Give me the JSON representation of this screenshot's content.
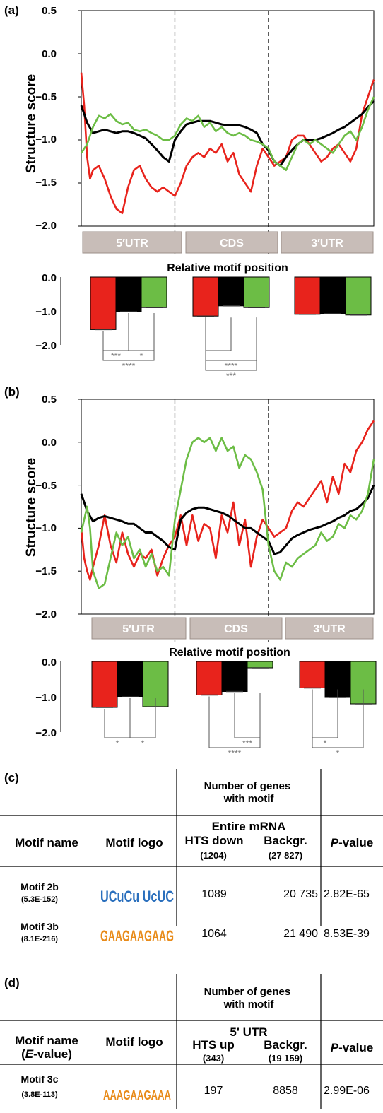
{
  "chart_data": [
    {
      "type": "line",
      "panel_label": "(a)",
      "ylabel": "Structure score",
      "ylim": [
        -2.0,
        0.5
      ],
      "yticks": [
        "0.5",
        "0.0",
        "−0.5",
        "−1.0",
        "−1.5",
        "−2.0"
      ],
      "segments": [
        "5′UTR",
        "CDS",
        "3′UTR"
      ],
      "x_range": [
        0,
        100
      ],
      "dividers": [
        32,
        64
      ],
      "series": [
        {
          "color": "#e8231c",
          "x": [
            0,
            1,
            2,
            3,
            4,
            6,
            8,
            10,
            12,
            14,
            16,
            18,
            20,
            22,
            24,
            26,
            28,
            30,
            32,
            34,
            36,
            38,
            40,
            42,
            44,
            46,
            48,
            50,
            52,
            54,
            56,
            58,
            60,
            62,
            64,
            66,
            68,
            70,
            72,
            74,
            76,
            78,
            80,
            82,
            84,
            86,
            88,
            90,
            92,
            94,
            96,
            98,
            100
          ],
          "values": [
            -0.22,
            -0.6,
            -1.2,
            -1.45,
            -1.35,
            -1.3,
            -1.45,
            -1.65,
            -1.8,
            -1.85,
            -1.55,
            -1.35,
            -1.3,
            -1.45,
            -1.55,
            -1.6,
            -1.55,
            -1.6,
            -1.65,
            -1.5,
            -1.3,
            -1.2,
            -1.15,
            -1.2,
            -1.1,
            -1.15,
            -1.05,
            -1.25,
            -1.15,
            -1.4,
            -1.5,
            -1.6,
            -1.3,
            -1.1,
            -1.2,
            -1.3,
            -1.25,
            -1.2,
            -1.0,
            -0.95,
            -0.95,
            -1.05,
            -1.15,
            -1.25,
            -1.2,
            -1.1,
            -1.05,
            -1.15,
            -1.25,
            -1.1,
            -0.7,
            -0.5,
            -0.3
          ]
        },
        {
          "color": "#000000",
          "x": [
            0,
            2,
            4,
            6,
            8,
            10,
            12,
            14,
            16,
            18,
            20,
            22,
            24,
            26,
            28,
            30,
            32,
            34,
            36,
            38,
            40,
            42,
            44,
            46,
            48,
            50,
            52,
            54,
            56,
            58,
            60,
            62,
            64,
            66,
            68,
            70,
            72,
            74,
            76,
            78,
            80,
            82,
            84,
            86,
            88,
            90,
            92,
            94,
            96,
            98,
            100
          ],
          "values": [
            -0.6,
            -0.8,
            -0.92,
            -0.9,
            -0.88,
            -0.9,
            -0.92,
            -0.9,
            -0.9,
            -0.92,
            -0.95,
            -0.98,
            -1.05,
            -1.12,
            -1.2,
            -1.25,
            -1.0,
            -0.9,
            -0.82,
            -0.8,
            -0.78,
            -0.78,
            -0.78,
            -0.8,
            -0.82,
            -0.83,
            -0.83,
            -0.83,
            -0.85,
            -0.88,
            -0.92,
            -1.05,
            -1.12,
            -1.25,
            -1.3,
            -1.2,
            -1.12,
            -1.05,
            -1.0,
            -1.0,
            -1.0,
            -0.98,
            -0.95,
            -0.92,
            -0.88,
            -0.85,
            -0.8,
            -0.75,
            -0.7,
            -0.62,
            -0.55
          ]
        },
        {
          "color": "#6cbd45",
          "x": [
            0,
            2,
            4,
            6,
            8,
            10,
            12,
            14,
            16,
            18,
            20,
            22,
            24,
            26,
            28,
            30,
            32,
            34,
            36,
            38,
            40,
            42,
            44,
            46,
            48,
            50,
            52,
            54,
            56,
            58,
            60,
            62,
            64,
            66,
            68,
            70,
            72,
            74,
            76,
            78,
            80,
            82,
            84,
            86,
            88,
            90,
            92,
            94,
            96,
            98,
            100
          ],
          "values": [
            -1.15,
            -1.05,
            -0.85,
            -0.72,
            -0.75,
            -0.7,
            -0.78,
            -0.82,
            -0.8,
            -0.88,
            -0.9,
            -0.88,
            -0.92,
            -0.95,
            -1.0,
            -1.0,
            -0.95,
            -0.82,
            -0.75,
            -0.78,
            -0.72,
            -0.85,
            -0.8,
            -0.9,
            -0.85,
            -0.92,
            -0.95,
            -0.92,
            -0.95,
            -1.0,
            -1.02,
            -1.05,
            -1.1,
            -1.25,
            -1.3,
            -1.35,
            -1.2,
            -1.05,
            -1.0,
            -1.05,
            -1.0,
            -1.05,
            -1.1,
            -1.15,
            -1.05,
            -0.95,
            -0.9,
            -1.0,
            -0.85,
            -0.65,
            -0.5
          ]
        }
      ],
      "bar_panel": {
        "xlabel": "Relative motif position",
        "ylim": [
          -2.0,
          0.0
        ],
        "yticks": [
          "0.0",
          "−1.0",
          "−2.0"
        ],
        "groups": [
          {
            "values": [
              -1.55,
              -1.02,
              -0.9
            ]
          },
          {
            "values": [
              -1.15,
              -0.85,
              -0.9
            ]
          },
          {
            "values": [
              -1.1,
              -1.08,
              -1.12
            ]
          }
        ],
        "brackets": [
          {
            "group": 0,
            "from": 0,
            "to": 1,
            "label": "***",
            "level": 1
          },
          {
            "group": 0,
            "from": 1,
            "to": 2,
            "label": "*",
            "level": 1
          },
          {
            "group": 0,
            "from": 0,
            "to": 2,
            "label": "****",
            "level": 2
          },
          {
            "group": 1,
            "from": 0,
            "to": 1,
            "label": "",
            "level": 1
          },
          {
            "group": 1,
            "from": 0,
            "to": 2,
            "label": "****",
            "level": 2
          },
          {
            "group": 1,
            "from": 0,
            "to": 2,
            "label": "***",
            "level": 3
          }
        ]
      }
    },
    {
      "type": "line",
      "panel_label": "(b)",
      "ylabel": "Structure score",
      "ylim": [
        -2.0,
        0.5
      ],
      "yticks": [
        "0.5",
        "0.0",
        "−0.5",
        "−1.0",
        "−1.5",
        "−2.0"
      ],
      "segments": [
        "5′UTR",
        "CDS",
        "3′UTR"
      ],
      "x_range": [
        0,
        100
      ],
      "dividers": [
        32,
        64
      ],
      "series": [
        {
          "color": "#e8231c",
          "x": [
            0,
            1,
            2,
            3,
            4,
            6,
            8,
            10,
            12,
            14,
            16,
            18,
            20,
            22,
            24,
            26,
            28,
            30,
            32,
            34,
            36,
            38,
            40,
            42,
            44,
            46,
            48,
            50,
            52,
            54,
            56,
            58,
            60,
            62,
            64,
            66,
            68,
            70,
            72,
            74,
            76,
            78,
            80,
            82,
            84,
            86,
            88,
            90,
            92,
            94,
            96,
            98,
            100
          ],
          "values": [
            -1.0,
            -1.35,
            -1.5,
            -1.6,
            -1.45,
            -1.2,
            -0.85,
            -1.2,
            -1.4,
            -1.05,
            -1.3,
            -1.45,
            -1.3,
            -1.35,
            -1.25,
            -1.55,
            -1.35,
            -1.2,
            -1.1,
            -0.85,
            -1.2,
            -0.85,
            -1.15,
            -0.95,
            -1.0,
            -1.35,
            -0.85,
            -1.05,
            -0.7,
            -1.2,
            -0.9,
            -1.45,
            -1.1,
            -0.9,
            -1.0,
            -1.1,
            -1.05,
            -1.0,
            -0.8,
            -0.7,
            -0.75,
            -0.65,
            -0.55,
            -0.45,
            -0.7,
            -0.4,
            -0.6,
            -0.25,
            -0.35,
            -0.1,
            0.0,
            0.15,
            0.25
          ]
        },
        {
          "color": "#000000",
          "x": [
            0,
            2,
            4,
            6,
            8,
            10,
            12,
            14,
            16,
            18,
            20,
            22,
            24,
            26,
            28,
            30,
            32,
            34,
            36,
            38,
            40,
            42,
            44,
            46,
            48,
            50,
            52,
            54,
            56,
            58,
            60,
            62,
            64,
            66,
            68,
            70,
            72,
            74,
            76,
            78,
            80,
            82,
            84,
            86,
            88,
            90,
            92,
            94,
            96,
            98,
            100
          ],
          "values": [
            -0.6,
            -0.8,
            -0.92,
            -0.88,
            -0.86,
            -0.88,
            -0.9,
            -0.92,
            -0.95,
            -0.95,
            -1.0,
            -1.05,
            -1.05,
            -1.1,
            -1.15,
            -1.22,
            -1.25,
            -0.9,
            -0.82,
            -0.78,
            -0.76,
            -0.76,
            -0.78,
            -0.8,
            -0.82,
            -0.85,
            -0.9,
            -0.95,
            -1.0,
            -1.0,
            -1.05,
            -1.1,
            -1.15,
            -1.3,
            -1.28,
            -1.2,
            -1.12,
            -1.08,
            -1.05,
            -1.02,
            -1.0,
            -0.98,
            -0.95,
            -0.92,
            -0.88,
            -0.85,
            -0.8,
            -0.78,
            -0.72,
            -0.65,
            -0.5
          ]
        },
        {
          "color": "#6cbd45",
          "x": [
            0,
            1,
            2,
            3,
            4,
            6,
            8,
            10,
            12,
            14,
            16,
            18,
            20,
            22,
            24,
            26,
            28,
            30,
            32,
            34,
            36,
            38,
            40,
            42,
            44,
            46,
            48,
            50,
            52,
            54,
            56,
            58,
            60,
            62,
            64,
            66,
            68,
            70,
            72,
            74,
            76,
            78,
            80,
            82,
            84,
            86,
            88,
            90,
            92,
            94,
            96,
            98,
            100
          ],
          "values": [
            -1.05,
            -0.9,
            -0.75,
            -1.0,
            -1.5,
            -1.7,
            -1.65,
            -1.35,
            -1.05,
            -1.2,
            -1.1,
            -1.35,
            -1.25,
            -1.45,
            -1.3,
            -1.5,
            -1.45,
            -1.55,
            -0.9,
            -0.55,
            -0.2,
            0.0,
            0.05,
            0.0,
            0.05,
            -0.1,
            0.05,
            -0.1,
            -0.05,
            -0.3,
            -0.15,
            -0.2,
            -0.35,
            -0.55,
            -1.2,
            -1.5,
            -1.6,
            -1.4,
            -1.45,
            -1.35,
            -1.3,
            -1.25,
            -1.2,
            -1.05,
            -1.15,
            -1.1,
            -0.95,
            -1.0,
            -0.85,
            -0.9,
            -0.8,
            -0.6,
            -0.2
          ]
        }
      ],
      "bar_panel": {
        "xlabel": "Relative motif position",
        "ylim": [
          -2.0,
          0.0
        ],
        "yticks": [
          "0.0",
          "−1.0",
          "−2.0"
        ],
        "groups": [
          {
            "values": [
              -1.3,
              -1.0,
              -1.28
            ]
          },
          {
            "values": [
              -0.95,
              -0.85,
              -0.18
            ]
          },
          {
            "values": [
              -0.75,
              -1.02,
              -1.2
            ]
          }
        ],
        "brackets": [
          {
            "group": 0,
            "from": 0,
            "to": 1,
            "label": "*",
            "level": 1
          },
          {
            "group": 0,
            "from": 1,
            "to": 2,
            "label": "*",
            "level": 1
          },
          {
            "group": 1,
            "from": 1,
            "to": 2,
            "label": "***",
            "level": 1
          },
          {
            "group": 1,
            "from": 0,
            "to": 2,
            "label": "****",
            "level": 2
          },
          {
            "group": 2,
            "from": 0,
            "to": 1,
            "label": "*",
            "level": 1
          },
          {
            "group": 2,
            "from": 0,
            "to": 2,
            "label": "*",
            "level": 2
          }
        ]
      }
    },
    {
      "type": "table",
      "panel_label": "(c)",
      "group_header": "Number of genes with motif",
      "region": "Entire mRNA",
      "columns": {
        "name": "Motif name",
        "logo": "Motif logo",
        "hts": "HTS down",
        "hts_n": "(1204)",
        "bg": "Backgr.",
        "bg_n": "(27 827)",
        "p": "P-value"
      },
      "rows": [
        {
          "name": "Motif 2b",
          "evalue": "(5.3E-152)",
          "logo": "UCuCu UcUC",
          "hts": "1089",
          "bg": "20 735",
          "p": "2.82E-65"
        },
        {
          "name": "Motif 3b",
          "evalue": "(8.1E-216)",
          "logo": "GAAGAAGAAG",
          "hts": "1064",
          "bg": "21 490",
          "p": "8.53E-39"
        }
      ]
    },
    {
      "type": "table",
      "panel_label": "(d)",
      "group_header": "Number of genes with motif",
      "region": "5' UTR",
      "columns": {
        "name": "Motif name",
        "name_sub": "(E-value)",
        "logo": "Motif logo",
        "hts": "HTS up",
        "hts_n": "(343)",
        "bg": "Backgr.",
        "bg_n": "(19 159)",
        "p": "P-value"
      },
      "rows": [
        {
          "name": "Motif 3c",
          "evalue": "(3.8E-113)",
          "logo": "AAAGAAGAAA",
          "hts": "197",
          "bg": "8858",
          "p": "2.99E-06"
        }
      ]
    }
  ]
}
